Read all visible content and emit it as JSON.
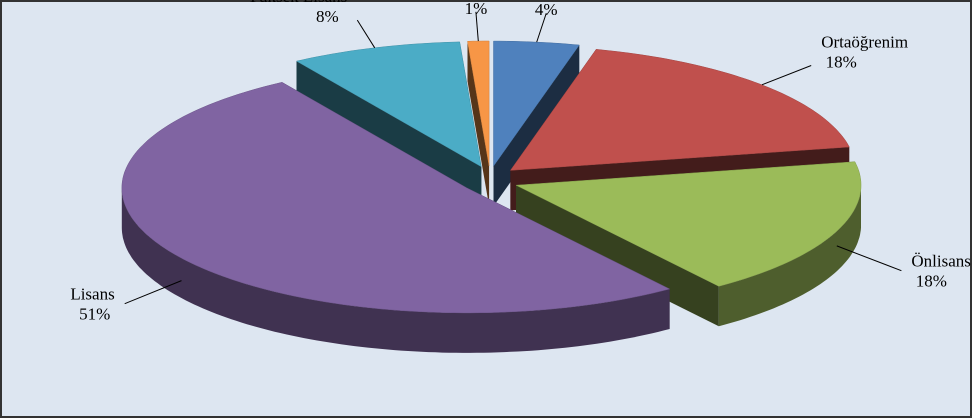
{
  "chart_data": {
    "type": "pie",
    "categories": [
      "İlköğrenim",
      "Ortaöğrenim",
      "Önlisans",
      "Lisans",
      "Yüksek Lisans",
      "Doktora"
    ],
    "values": [
      4,
      18,
      18,
      51,
      8,
      1
    ],
    "value_labels": [
      "4%",
      "18%",
      "18%",
      "51%",
      "8%",
      "1%"
    ],
    "colors": [
      "#4f81bd",
      "#c0504d",
      "#9bbb59",
      "#8064a2",
      "#4bacc6",
      "#f79646"
    ]
  }
}
